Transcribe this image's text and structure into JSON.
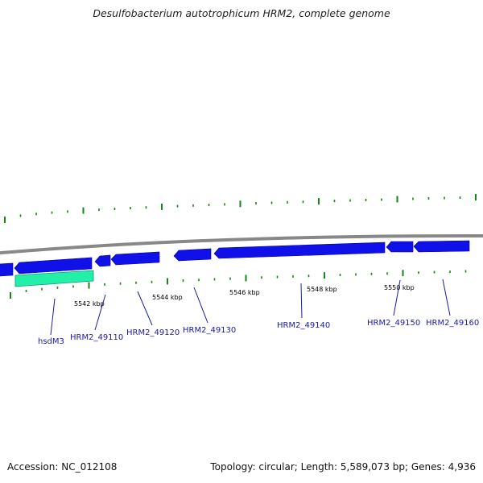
{
  "title": "Desulfobacterium autotrophicum HRM2, complete genome",
  "scale_labels": [
    "5542 kbp",
    "5544 kbp",
    "5546 kbp",
    "5548 kbp",
    "5550 kbp"
  ],
  "gene_labels": [
    "hsdM3",
    "HRM2_49110",
    "HRM2_49120",
    "HRM2_49130",
    "HRM2_49140",
    "HRM2_49150",
    "HRM2_49160"
  ],
  "footer": {
    "accession": "Accession: NC_012108",
    "stats": "Topology: circular; Length: 5,589,073 bp; Genes: 4,936"
  },
  "colors": {
    "backbone": "#888888",
    "gene_reverse": "#1010e8",
    "gene_forward": "#22f0a8",
    "ticks": "#118811",
    "gene_label": "#1a1aa6"
  }
}
